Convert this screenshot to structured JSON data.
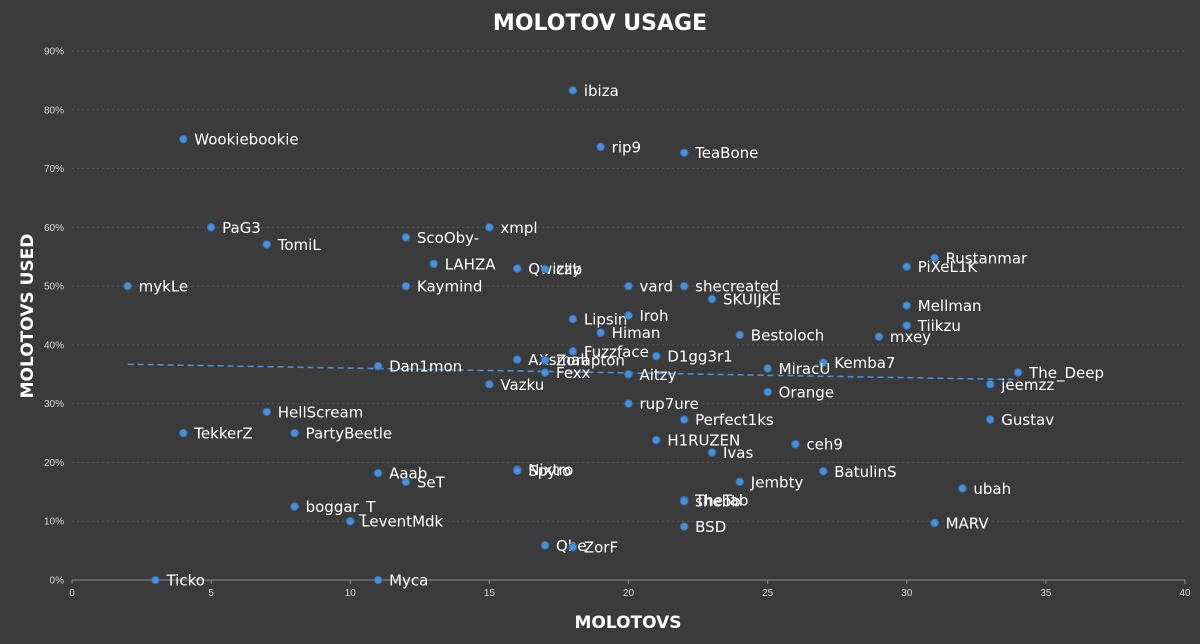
{
  "chart_data": {
    "type": "scatter",
    "title": "MOLOTOV USAGE",
    "xlabel": "MOLOTOVS",
    "ylabel": "MOLOTOVS USED",
    "xlim": [
      0,
      40
    ],
    "ylim": [
      0,
      90
    ],
    "x_ticks": [
      "0",
      "5",
      "10",
      "15",
      "20",
      "25",
      "30",
      "35",
      "40"
    ],
    "y_ticks": [
      "0%",
      "10%",
      "20%",
      "30%",
      "40%",
      "50%",
      "60%",
      "70%",
      "80%",
      "90%"
    ],
    "grid": true,
    "legend": "none",
    "trendline": {
      "style": "dashed",
      "x": [
        2,
        34
      ],
      "y": [
        36.7,
        34.1
      ]
    },
    "points": [
      {
        "name": "ibiza",
        "x": 18,
        "y": 83.3
      },
      {
        "name": "Wookiebookie",
        "x": 4,
        "y": 75
      },
      {
        "name": "rip9",
        "x": 19,
        "y": 73.7
      },
      {
        "name": "TeaBone",
        "x": 22,
        "y": 72.7
      },
      {
        "name": "PaG3",
        "x": 5,
        "y": 60
      },
      {
        "name": "xmpl",
        "x": 15,
        "y": 60
      },
      {
        "name": "ScoOby-",
        "x": 12,
        "y": 58.3
      },
      {
        "name": "TomiL",
        "x": 7,
        "y": 57.1
      },
      {
        "name": "LAHZA",
        "x": 13,
        "y": 53.8
      },
      {
        "name": "Qwizzy",
        "x": 16,
        "y": 53
      },
      {
        "name": "clib",
        "x": 17,
        "y": 52.9
      },
      {
        "name": "Rustanmar",
        "x": 31,
        "y": 54.8
      },
      {
        "name": "PiXeL1K",
        "x": 30,
        "y": 53.3
      },
      {
        "name": "mykLe",
        "x": 2,
        "y": 50
      },
      {
        "name": "Kaymind",
        "x": 12,
        "y": 50
      },
      {
        "name": "vard",
        "x": 20,
        "y": 50
      },
      {
        "name": "shecreated",
        "x": 22,
        "y": 50
      },
      {
        "name": "SKUIJKE",
        "x": 23,
        "y": 47.8
      },
      {
        "name": "Mellman",
        "x": 30,
        "y": 46.7
      },
      {
        "name": "Lipsin",
        "x": 18,
        "y": 44.4
      },
      {
        "name": "Iroh",
        "x": 20,
        "y": 45
      },
      {
        "name": "Tiikzu",
        "x": 30,
        "y": 43.3
      },
      {
        "name": "Himan",
        "x": 19,
        "y": 42.1
      },
      {
        "name": "Bestoloch",
        "x": 24,
        "y": 41.7
      },
      {
        "name": "mxey",
        "x": 29,
        "y": 41.4
      },
      {
        "name": "Fuzzface",
        "x": 18,
        "y": 38.9
      },
      {
        "name": "D1gg3r1",
        "x": 21,
        "y": 38.1
      },
      {
        "name": "AXsmall",
        "x": 16,
        "y": 37.5
      },
      {
        "name": "Zorapton",
        "x": 17,
        "y": 37.4
      },
      {
        "name": "Kemba7",
        "x": 27,
        "y": 37
      },
      {
        "name": "Dan1mon",
        "x": 11,
        "y": 36.4
      },
      {
        "name": "MiracU",
        "x": 25,
        "y": 36
      },
      {
        "name": "Fexx",
        "x": 17,
        "y": 35.3
      },
      {
        "name": "Aitzy",
        "x": 20,
        "y": 35
      },
      {
        "name": "The_Deep",
        "x": 34,
        "y": 35.3
      },
      {
        "name": "Vazku",
        "x": 15,
        "y": 33.3
      },
      {
        "name": "jeemzz",
        "x": 33,
        "y": 33.3
      },
      {
        "name": "Orange",
        "x": 25,
        "y": 32
      },
      {
        "name": "rup7ure",
        "x": 20,
        "y": 30
      },
      {
        "name": "HellScream",
        "x": 7,
        "y": 28.6
      },
      {
        "name": "Perfect1ks",
        "x": 22,
        "y": 27.3
      },
      {
        "name": "Gustav",
        "x": 33,
        "y": 27.3
      },
      {
        "name": "TekkerZ",
        "x": 4,
        "y": 25
      },
      {
        "name": "PartyBeetle",
        "x": 8,
        "y": 25
      },
      {
        "name": "H1RUZEN",
        "x": 21,
        "y": 23.8
      },
      {
        "name": "ceh9",
        "x": 26,
        "y": 23.1
      },
      {
        "name": "Ivas",
        "x": 23,
        "y": 21.7
      },
      {
        "name": "Nixtro",
        "x": 16,
        "y": 18.8
      },
      {
        "name": "Spyro",
        "x": 16,
        "y": 18.6
      },
      {
        "name": "BatulinS",
        "x": 27,
        "y": 18.5
      },
      {
        "name": "Aaab",
        "x": 11,
        "y": 18.2
      },
      {
        "name": "SeT",
        "x": 12,
        "y": 16.7
      },
      {
        "name": "Jembty",
        "x": 24,
        "y": 16.7
      },
      {
        "name": "ubah",
        "x": 32,
        "y": 15.6
      },
      {
        "name": "TheTab",
        "x": 22,
        "y": 13.6
      },
      {
        "name": "shebb",
        "x": 22,
        "y": 13.4
      },
      {
        "name": "boggar_T",
        "x": 8,
        "y": 12.5
      },
      {
        "name": "LeventMdk",
        "x": 10,
        "y": 10
      },
      {
        "name": "BSD",
        "x": 22,
        "y": 9.1
      },
      {
        "name": "MARV",
        "x": 31,
        "y": 9.7
      },
      {
        "name": "Qbe",
        "x": 17,
        "y": 5.9
      },
      {
        "name": "ZorF",
        "x": 18,
        "y": 5.6
      },
      {
        "name": "Ticko",
        "x": 3,
        "y": 0
      },
      {
        "name": "Myca",
        "x": 11,
        "y": 0
      }
    ]
  }
}
